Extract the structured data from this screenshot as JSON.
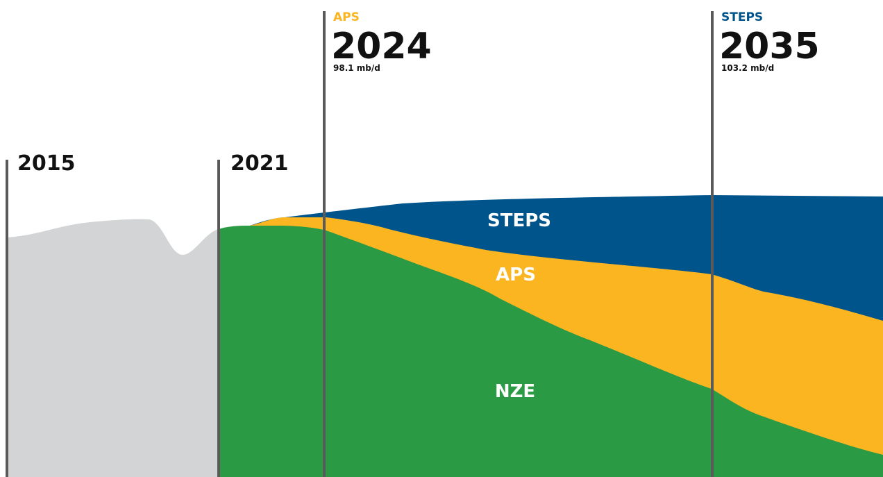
{
  "markers": [
    {
      "year": "2015"
    },
    {
      "year": "2021"
    },
    {
      "scenario": "APS",
      "year": "2024",
      "value": "98.1 mb/d"
    },
    {
      "scenario": "STEPS",
      "year": "2035",
      "value": "103.2 mb/d"
    }
  ],
  "areas": {
    "steps": "STEPS",
    "aps": "APS",
    "nze": "NZE"
  }
}
